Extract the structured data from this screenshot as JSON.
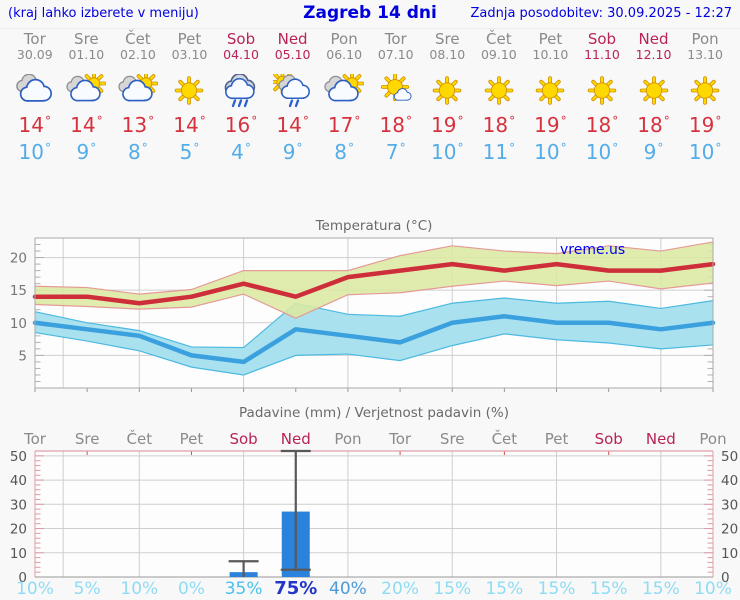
{
  "header": {
    "left_note": "(kraj lahko izberete v meniju)",
    "title": "Zagreb 14 dni",
    "updated": "Zadnja posodobitev: 30.09.2025 - 12:27"
  },
  "units": {
    "degree": "°"
  },
  "colors": {
    "header_text": "#0000dd",
    "weekday": "#8a8a8a",
    "weekend": "#b8235a",
    "tmax": "#d6323e",
    "tmin": "#53ade8",
    "bar": "#2b82dc",
    "whisker": "#595959",
    "grid": "#cfcfcf",
    "axis": "#a9a9a9",
    "minor_tick": "#b0b0b0",
    "title": "#6a6a6a",
    "tick_label": "#777777",
    "watermark": "#0000ee",
    "pink_axis": "#e0a0a8",
    "pink_tick": "#dd9aa2",
    "red_minor_tick": "#d05050",
    "plot_bg": "#fdfdfd"
  },
  "days": [
    {
      "name": "Tor",
      "date": "30.09",
      "weekend": false,
      "icon": "cloudy",
      "tmax": "14",
      "tmin": "10"
    },
    {
      "name": "Sre",
      "date": "01.10",
      "weekend": false,
      "icon": "partly-cloudy",
      "tmax": "14",
      "tmin": "9"
    },
    {
      "name": "Čet",
      "date": "02.10",
      "weekend": false,
      "icon": "partly-cloudy",
      "tmax": "13",
      "tmin": "8"
    },
    {
      "name": "Pet",
      "date": "03.10",
      "weekend": false,
      "icon": "sunny",
      "tmax": "14",
      "tmin": "5"
    },
    {
      "name": "Sob",
      "date": "04.10",
      "weekend": true,
      "icon": "rain",
      "tmax": "16",
      "tmin": "4"
    },
    {
      "name": "Ned",
      "date": "05.10",
      "weekend": true,
      "icon": "sun-shower",
      "tmax": "14",
      "tmin": "9"
    },
    {
      "name": "Pon",
      "date": "06.10",
      "weekend": false,
      "icon": "partly-cloudy",
      "tmax": "17",
      "tmin": "8"
    },
    {
      "name": "Tor",
      "date": "07.10",
      "weekend": false,
      "icon": "sun-small-cloud",
      "tmax": "18",
      "tmin": "7"
    },
    {
      "name": "Sre",
      "date": "08.10",
      "weekend": false,
      "icon": "sunny",
      "tmax": "19",
      "tmin": "10"
    },
    {
      "name": "Čet",
      "date": "09.10",
      "weekend": false,
      "icon": "sunny",
      "tmax": "18",
      "tmin": "11"
    },
    {
      "name": "Pet",
      "date": "10.10",
      "weekend": false,
      "icon": "sunny",
      "tmax": "19",
      "tmin": "10"
    },
    {
      "name": "Sob",
      "date": "11.10",
      "weekend": true,
      "icon": "sunny",
      "tmax": "18",
      "tmin": "10"
    },
    {
      "name": "Ned",
      "date": "12.10",
      "weekend": true,
      "icon": "sunny",
      "tmax": "18",
      "tmin": "9"
    },
    {
      "name": "Pon",
      "date": "13.10",
      "weekend": false,
      "icon": "sunny",
      "tmax": "19",
      "tmin": "10"
    }
  ],
  "chart_data": [
    {
      "type": "line",
      "title": "Temperatura (°C)",
      "watermark": "vreme.us",
      "xlabel": "",
      "ylabel": "",
      "ylim": [
        0,
        23
      ],
      "yticks": [
        5,
        10,
        15,
        20
      ],
      "x_days": 14,
      "gridline_days": [
        2,
        4,
        6,
        8,
        10,
        12
      ],
      "extra_gridline_day": 0.54,
      "series": [
        {
          "name": "tmax-range",
          "kind": "band",
          "fill": "#dbe9a2",
          "edge": "#e59a96",
          "upper": [
            15.6,
            15.4,
            14.4,
            15.1,
            18,
            18,
            18,
            20.3,
            21.8,
            21,
            20.6,
            21.8,
            21,
            22.4
          ],
          "lower": [
            12.8,
            12.5,
            12.1,
            12.4,
            14.4,
            10.7,
            14.3,
            14.6,
            15.6,
            16.4,
            15.7,
            16.4,
            15.2,
            16.1
          ]
        },
        {
          "name": "tmin-range",
          "kind": "band",
          "fill": "#a9e1ef",
          "edge": "#4cb9e0",
          "upper": [
            11.7,
            10,
            8.8,
            6.3,
            6.2,
            13,
            11.3,
            11,
            13,
            13.8,
            13,
            13.3,
            12.2,
            13.4
          ],
          "lower": [
            8.5,
            7.2,
            5.7,
            3.2,
            2,
            5,
            5.2,
            4.2,
            6.5,
            8.3,
            7.4,
            6.9,
            6,
            6.6
          ]
        },
        {
          "name": "tmax",
          "kind": "line",
          "color": "#ce2e3a",
          "values": [
            14,
            14,
            13,
            14,
            16,
            14,
            17,
            18,
            19,
            18,
            19,
            18,
            18,
            19
          ]
        },
        {
          "name": "tmin",
          "kind": "line",
          "color": "#3ba0de",
          "values": [
            10,
            9,
            8,
            5,
            4,
            9,
            8,
            7,
            10,
            11,
            10,
            10,
            9,
            10
          ]
        }
      ]
    },
    {
      "type": "bar",
      "title": "Padavine (mm) / Verjetnost padavin (%)",
      "xlabel": "",
      "ylabel": "",
      "ylim": [
        0,
        52
      ],
      "yticks": [
        0,
        10,
        20,
        30,
        40,
        50
      ],
      "gridline_days": [
        2,
        4,
        6,
        8,
        10,
        12
      ],
      "extra_gridline_day": 0.54,
      "bars": {
        "values": [
          0,
          0,
          0,
          0,
          2,
          27,
          0,
          0,
          0,
          0,
          0,
          0,
          0,
          0
        ],
        "whisker_high": [
          0,
          0,
          0,
          0,
          6.5,
          52,
          0,
          0,
          0,
          0,
          0,
          0,
          0,
          0
        ],
        "whisker_low": [
          0,
          0,
          0,
          0,
          0,
          3,
          0,
          0,
          0,
          0,
          0,
          0,
          0,
          0
        ]
      },
      "probabilities": [
        {
          "label": "10%",
          "color": "#8edcf4",
          "bold": false,
          "size": 17
        },
        {
          "label": "5%",
          "color": "#8edcf4",
          "bold": false,
          "size": 17
        },
        {
          "label": "10%",
          "color": "#8edcf4",
          "bold": false,
          "size": 17
        },
        {
          "label": "0%",
          "color": "#8edcf4",
          "bold": false,
          "size": 17
        },
        {
          "label": "35%",
          "color": "#49c2ef",
          "bold": false,
          "size": 17
        },
        {
          "label": "75%",
          "color": "#2336c8",
          "bold": true,
          "size": 18
        },
        {
          "label": "40%",
          "color": "#4a9bd8",
          "bold": false,
          "size": 17
        },
        {
          "label": "20%",
          "color": "#8edcf4",
          "bold": false,
          "size": 17
        },
        {
          "label": "15%",
          "color": "#8edcf4",
          "bold": false,
          "size": 17
        },
        {
          "label": "15%",
          "color": "#8edcf4",
          "bold": false,
          "size": 17
        },
        {
          "label": "15%",
          "color": "#8edcf4",
          "bold": false,
          "size": 17
        },
        {
          "label": "15%",
          "color": "#8edcf4",
          "bold": false,
          "size": 17
        },
        {
          "label": "15%",
          "color": "#8edcf4",
          "bold": false,
          "size": 17
        },
        {
          "label": "10%",
          "color": "#8edcf4",
          "bold": false,
          "size": 17
        }
      ]
    }
  ]
}
